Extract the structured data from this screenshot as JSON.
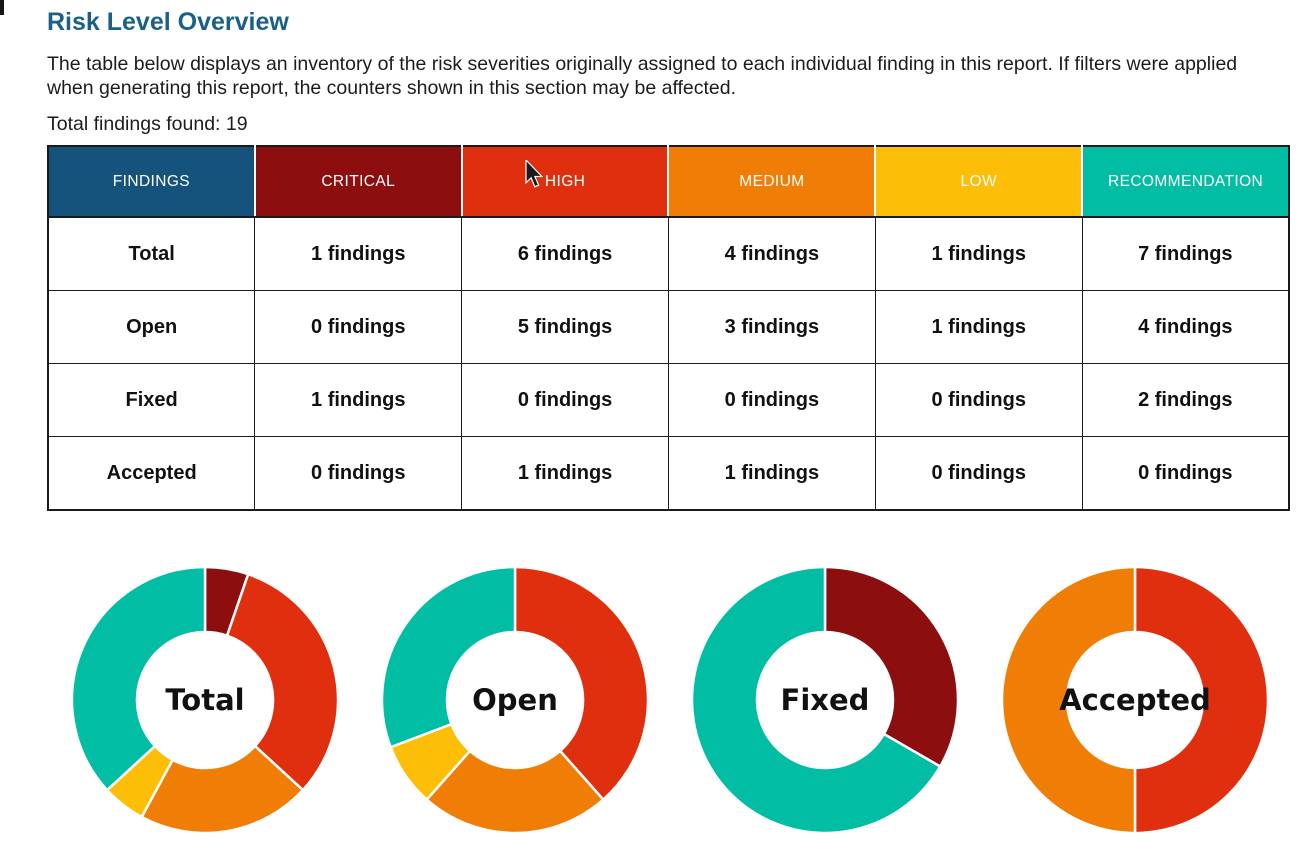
{
  "page": {
    "title": "Risk Level Overview",
    "description": "The table below displays an inventory of the risk severities originally assigned to each individual finding in this report. If filters were applied when generating this report, the counters shown in this section may be affected.",
    "total_findings_line": "Total findings found: 19",
    "total_findings_count": "19"
  },
  "colors": {
    "title_blue": "#1b6187",
    "findings_header": "#15537d",
    "critical": "#8c0e0f",
    "high": "#df2f0e",
    "medium": "#f07d05",
    "low": "#fcbe06",
    "recommendation": "#00bda4",
    "table_border": "#1a1a1a"
  },
  "icons": {
    "cursor": "arrow-pointer"
  },
  "table": {
    "headers": [
      {
        "label": "FINDINGS",
        "color": "#15537d"
      },
      {
        "label": "CRITICAL",
        "color": "#8c0e0f"
      },
      {
        "label": "HIGH",
        "color": "#df2f0e"
      },
      {
        "label": "MEDIUM",
        "color": "#f07d05"
      },
      {
        "label": "LOW",
        "color": "#fcbe06"
      },
      {
        "label": "RECOMMENDATION",
        "color": "#00bda4"
      }
    ],
    "rows": [
      {
        "label": "Total",
        "values": [
          "1 findings",
          "6 findings",
          "4 findings",
          "1 findings",
          "7 findings"
        ]
      },
      {
        "label": "Open",
        "values": [
          "0 findings",
          "5 findings",
          "3 findings",
          "1 findings",
          "4 findings"
        ]
      },
      {
        "label": "Fixed",
        "values": [
          "1 findings",
          "0 findings",
          "0 findings",
          "0 findings",
          "2 findings"
        ]
      },
      {
        "label": "Accepted",
        "values": [
          "0 findings",
          "1 findings",
          "1 findings",
          "0 findings",
          "0 findings"
        ]
      }
    ]
  },
  "chart_data": [
    {
      "type": "pie",
      "donut": true,
      "title": "Total",
      "start_angle_deg": 0,
      "direction": "clockwise",
      "labels": [
        "Critical",
        "High",
        "Medium",
        "Low",
        "Recommendation"
      ],
      "values": [
        1,
        6,
        4,
        1,
        7
      ],
      "colors": [
        "#8c0e0f",
        "#df2f0e",
        "#f07d05",
        "#fcbe06",
        "#00bda4"
      ]
    },
    {
      "type": "pie",
      "donut": true,
      "title": "Open",
      "start_angle_deg": 0,
      "direction": "clockwise",
      "labels": [
        "Critical",
        "High",
        "Medium",
        "Low",
        "Recommendation"
      ],
      "values": [
        0,
        5,
        3,
        1,
        4
      ],
      "colors": [
        "#8c0e0f",
        "#df2f0e",
        "#f07d05",
        "#fcbe06",
        "#00bda4"
      ]
    },
    {
      "type": "pie",
      "donut": true,
      "title": "Fixed",
      "start_angle_deg": 0,
      "direction": "clockwise",
      "labels": [
        "Critical",
        "High",
        "Medium",
        "Low",
        "Recommendation"
      ],
      "values": [
        1,
        0,
        0,
        0,
        2
      ],
      "colors": [
        "#8c0e0f",
        "#df2f0e",
        "#f07d05",
        "#fcbe06",
        "#00bda4"
      ]
    },
    {
      "type": "pie",
      "donut": true,
      "title": "Accepted",
      "start_angle_deg": 0,
      "direction": "clockwise",
      "labels": [
        "Critical",
        "High",
        "Medium",
        "Low",
        "Recommendation"
      ],
      "values": [
        0,
        1,
        1,
        0,
        0
      ],
      "colors": [
        "#8c0e0f",
        "#df2f0e",
        "#f07d05",
        "#fcbe06",
        "#00bda4"
      ]
    }
  ]
}
